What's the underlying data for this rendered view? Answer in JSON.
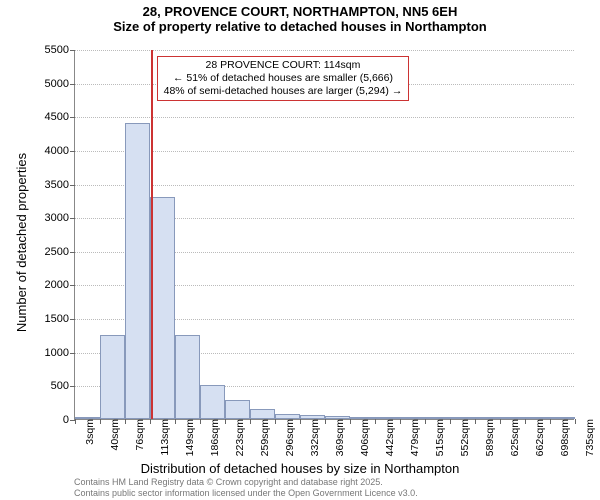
{
  "title_line1": "28, PROVENCE COURT, NORTHAMPTON, NN5 6EH",
  "title_line2": "Size of property relative to detached houses in Northampton",
  "yaxis_label": "Number of detached properties",
  "xaxis_label": "Distribution of detached houses by size in Northampton",
  "attribution_line1": "Contains HM Land Registry data © Crown copyright and database right 2025.",
  "attribution_line2": "Contains public sector information licensed under the Open Government Licence v3.0.",
  "callout_line1": "28 PROVENCE COURT: 114sqm",
  "callout_line2": "← 51% of detached houses are smaller (5,666)",
  "callout_line3": "48% of semi-detached houses are larger (5,294) →",
  "chart": {
    "type": "bar",
    "ylim": [
      0,
      5500
    ],
    "ytick_step": 500,
    "bar_fill": "#d6e0f2",
    "bar_border": "#8899bb",
    "marker_color": "#cc3333",
    "callout_border": "#cc3333",
    "background": "#ffffff",
    "grid_color": "#bbbbbb",
    "marker_x_value": 114,
    "x_start": 3,
    "x_step": 36.7,
    "x_labels": [
      "3sqm",
      "40sqm",
      "76sqm",
      "113sqm",
      "149sqm",
      "186sqm",
      "223sqm",
      "259sqm",
      "296sqm",
      "332sqm",
      "369sqm",
      "406sqm",
      "442sqm",
      "479sqm",
      "515sqm",
      "552sqm",
      "589sqm",
      "625sqm",
      "662sqm",
      "698sqm",
      "735sqm"
    ],
    "values": [
      0,
      1250,
      4400,
      3300,
      1250,
      500,
      280,
      150,
      80,
      60,
      40,
      30,
      20,
      20,
      15,
      12,
      10,
      8,
      6,
      5
    ]
  },
  "fonts": {
    "title_size_pt": 13,
    "axis_label_size_pt": 13,
    "tick_size_pt": 11,
    "callout_size_pt": 10.5,
    "attribution_size_pt": 9
  }
}
